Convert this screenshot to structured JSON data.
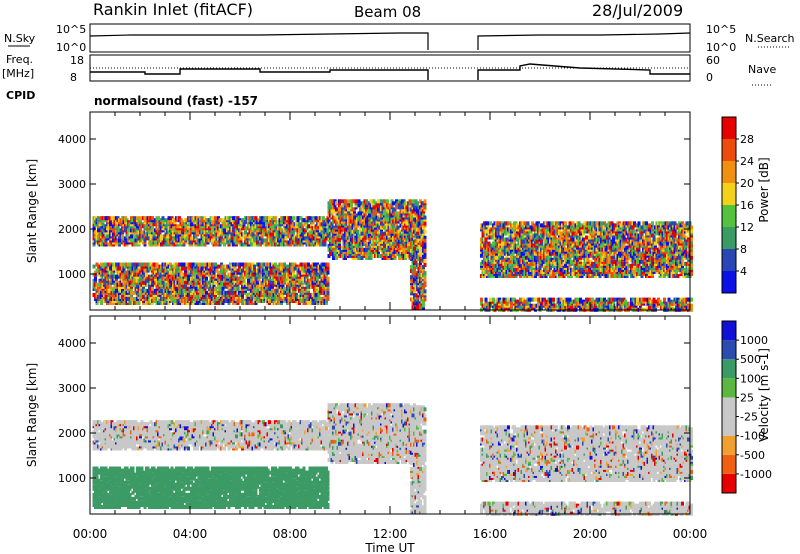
{
  "header": {
    "station": "Rankin Inlet (fitACF)",
    "beam": "Beam 08",
    "date": "28/Jul/2009"
  },
  "ts_panels": {
    "nsky_label": "N.Sky",
    "nsky_ticks": [
      "10^5",
      "10^0"
    ],
    "nsearch_label": "N.Search",
    "nsearch_ticks": [
      "10^5",
      "10^0"
    ],
    "freq_label": "Freq.",
    "freq_unit": "[MHz]",
    "freq_ticks": [
      "18",
      "8"
    ],
    "nave_label": "Nave",
    "nave_ticks": [
      "60",
      "0"
    ],
    "cpid_label": "CPID",
    "cpid_value": "normalsound (fast) -157"
  },
  "colors": {
    "power": [
      "#0a10e6",
      "#2846b4",
      "#3c9a64",
      "#54c23c",
      "#f4d21a",
      "#f09010",
      "#ec4c0c",
      "#e60000"
    ],
    "velocity": [
      "#e60000",
      "#f06010",
      "#f0a030",
      "#c8c8c8",
      "#c8c8c8",
      "#5ab840",
      "#3c9a64",
      "#2a4cb0",
      "#1010d6"
    ]
  },
  "chart_data": [
    {
      "type": "heatmap",
      "panel": "power",
      "ylabel": "Slant Range [km]",
      "yticks": [
        1000,
        2000,
        3000,
        4000
      ],
      "ylim": [
        200,
        4600
      ],
      "xlim": [
        0,
        24
      ],
      "colorbar_label": "Power [dB]",
      "colorbar_ticks": [
        "4",
        "8",
        "12",
        "16",
        "20",
        "24",
        "28"
      ],
      "colorbar_range": [
        0,
        32
      ]
    },
    {
      "type": "heatmap",
      "panel": "velocity",
      "ylabel": "Slant Range [km]",
      "yticks": [
        1000,
        2000,
        3000,
        4000
      ],
      "ylim": [
        200,
        4600
      ],
      "xlim": [
        0,
        24
      ],
      "colorbar_label": "Velocity [m s-1]",
      "colorbar_ticks": [
        "-1000",
        "-500",
        "-100",
        "-25",
        "25",
        "100",
        "500",
        "1000"
      ]
    }
  ],
  "xaxis": {
    "label": "Time UT",
    "ticks": [
      "00:00",
      "04:00",
      "08:00",
      "12:00",
      "16:00",
      "20:00",
      "00:00"
    ]
  }
}
